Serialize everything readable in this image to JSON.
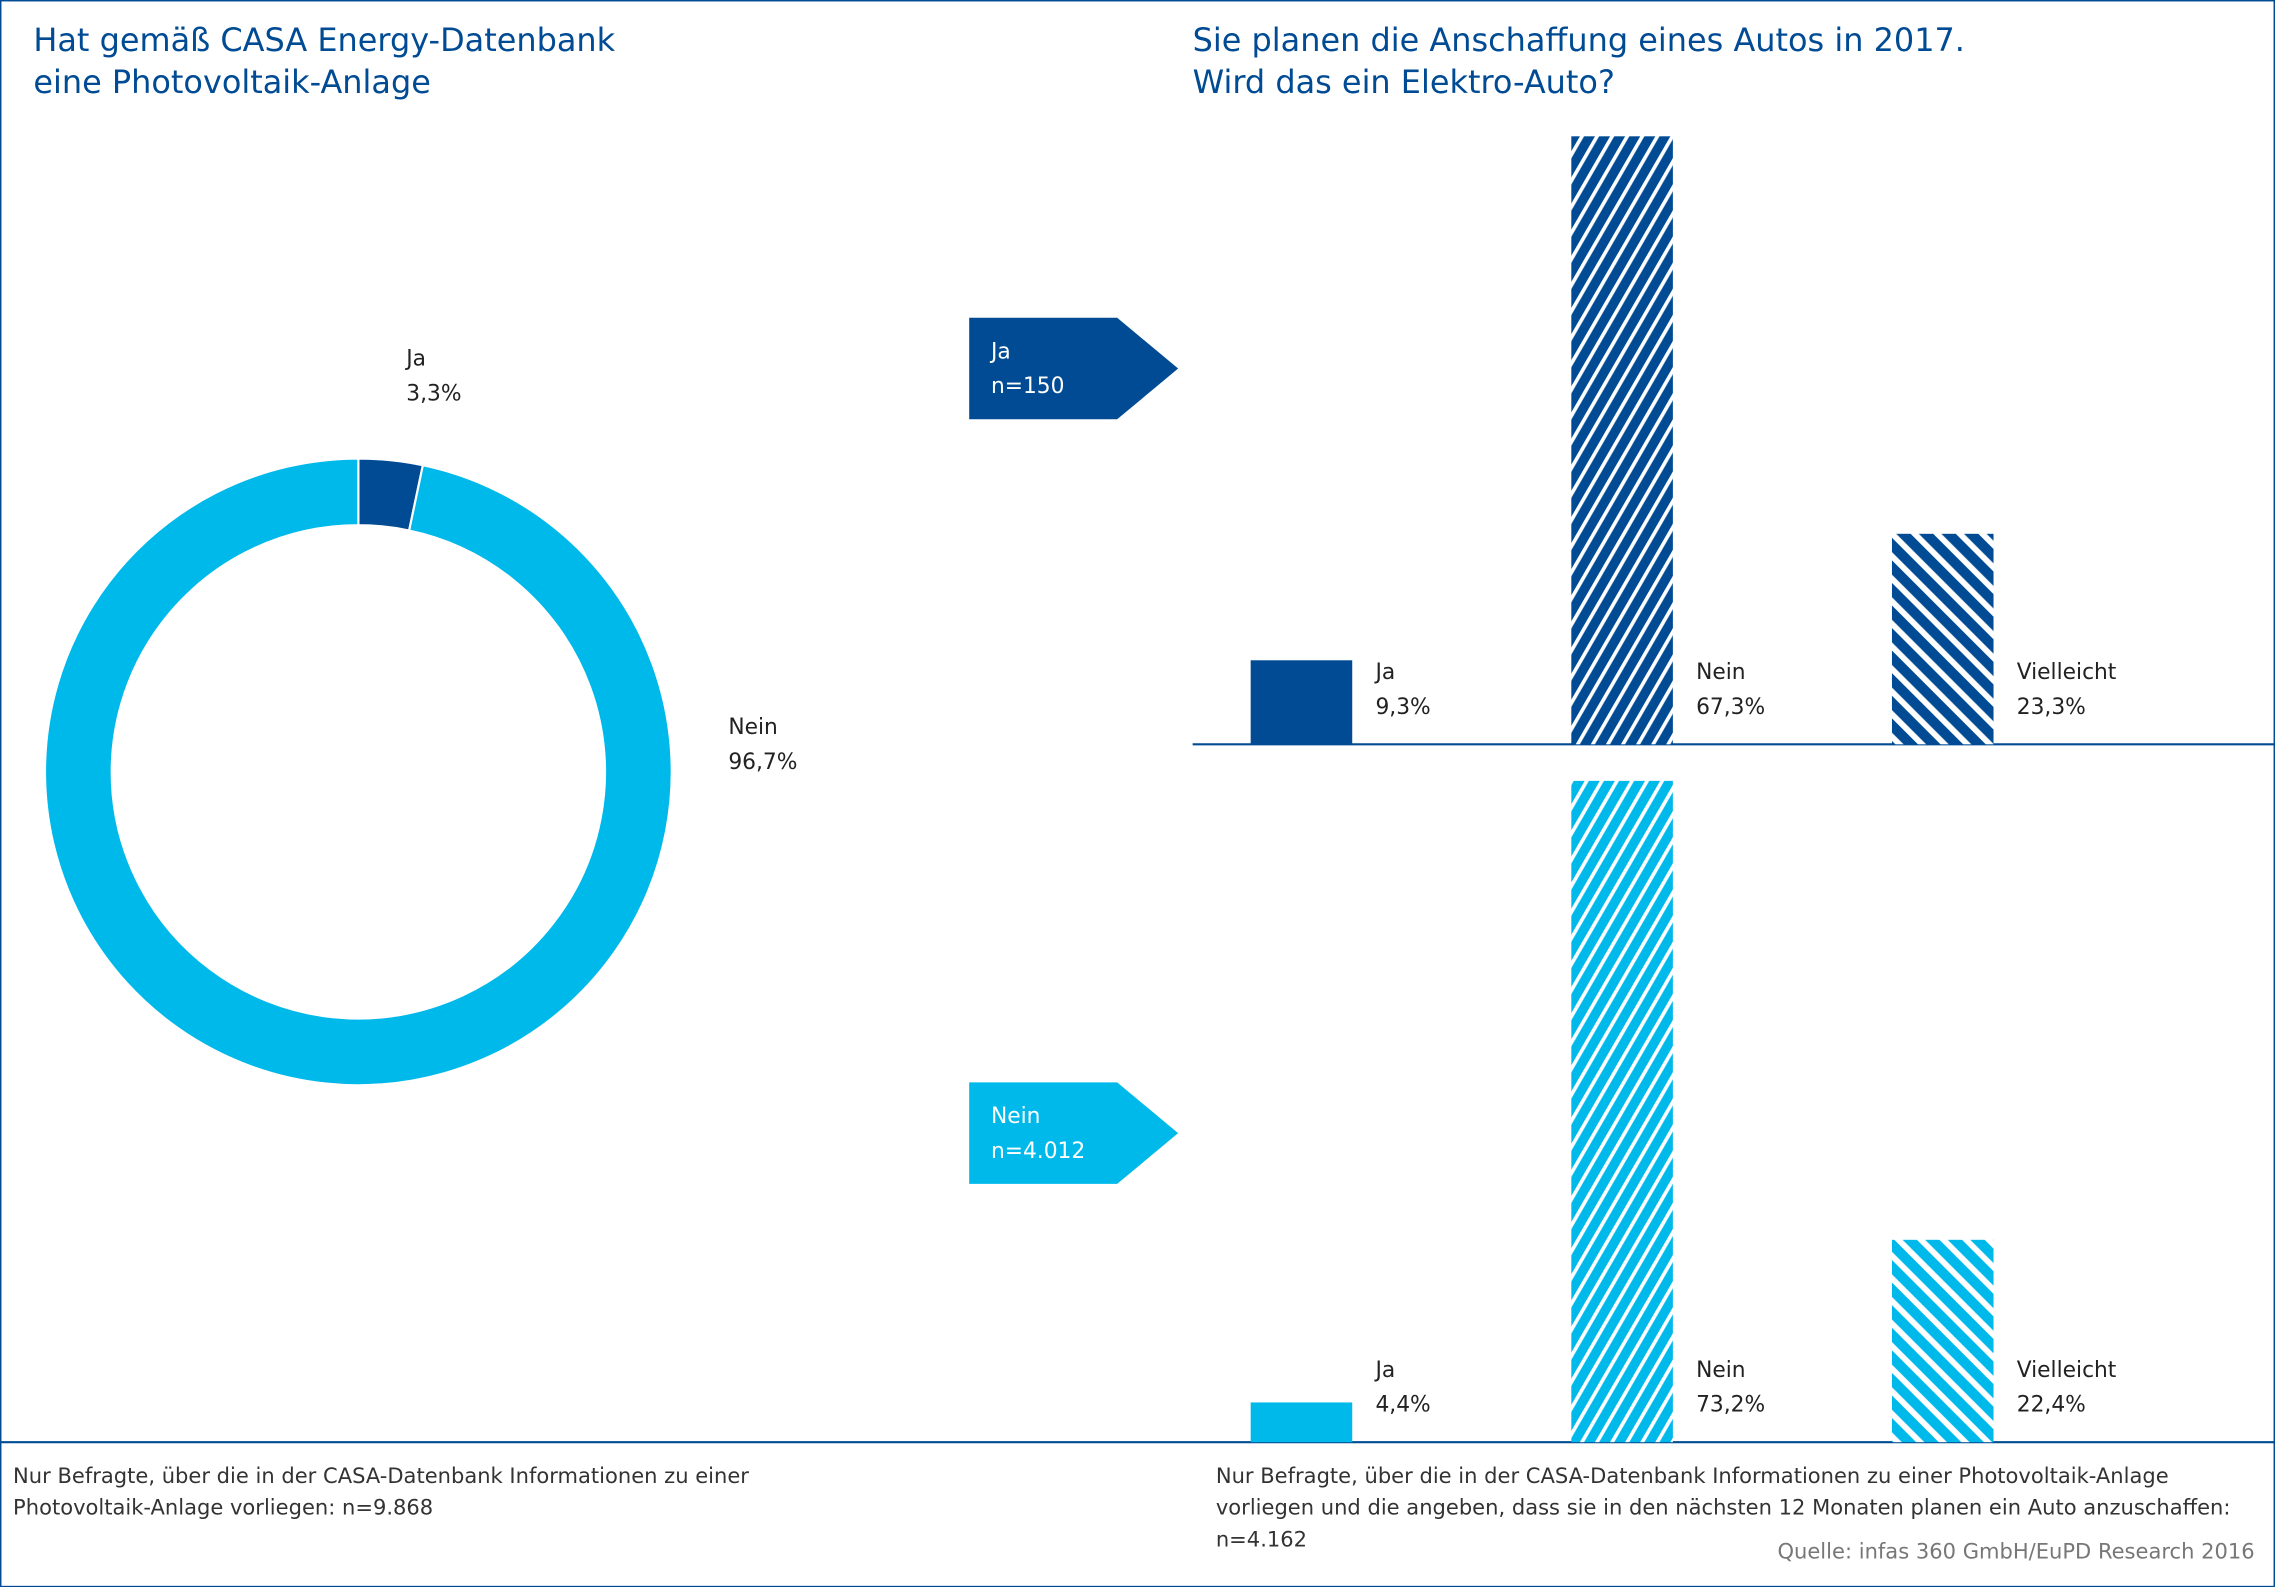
{
  "chart_data": [
    {
      "type": "pie",
      "title": "Hat gemäß CASA Energy-Datenbank eine Photovoltaik-Anlage",
      "categories": [
        "Ja",
        "Nein"
      ],
      "values": [
        3.3,
        96.7
      ],
      "value_labels": [
        "3,3%",
        "96,7%"
      ],
      "colors": [
        "#004b93",
        "#00b9eb"
      ],
      "note": "Nur Befragte, über die in der CASA-Datenbank Informationen zu einer Photovoltaik-Anlage vorliegen: n=9.868"
    },
    {
      "type": "bar",
      "title": "Sie planen die Anschaffung eines Autos in 2017. Wird das ein Elektro-Auto?",
      "group": "Ja",
      "n": "n=150",
      "categories": [
        "Ja",
        "Nein",
        "Vielleicht"
      ],
      "values": [
        9.3,
        67.3,
        23.3
      ],
      "value_labels": [
        "9,3%",
        "67,3%",
        "23,3%"
      ],
      "color": "#004b93",
      "ylim": [
        0,
        75
      ]
    },
    {
      "type": "bar",
      "group": "Nein",
      "n": "n=4.012",
      "categories": [
        "Ja",
        "Nein",
        "Vielleicht"
      ],
      "values": [
        4.4,
        73.2,
        22.4
      ],
      "value_labels": [
        "4,4%",
        "73,2%",
        "22,4%"
      ],
      "color": "#00b9eb",
      "ylim": [
        0,
        75
      ],
      "note": "Nur Befragte, über die in der CASA-Datenbank Informationen zu einer Photovoltaik-Anlage vorliegen und die angeben, dass sie in den nächsten 12 Monaten planen ein Auto anzuschaffen: n=4.162"
    }
  ],
  "source": "Quelle: infas 360 GmbH/EuPD Research 2016"
}
